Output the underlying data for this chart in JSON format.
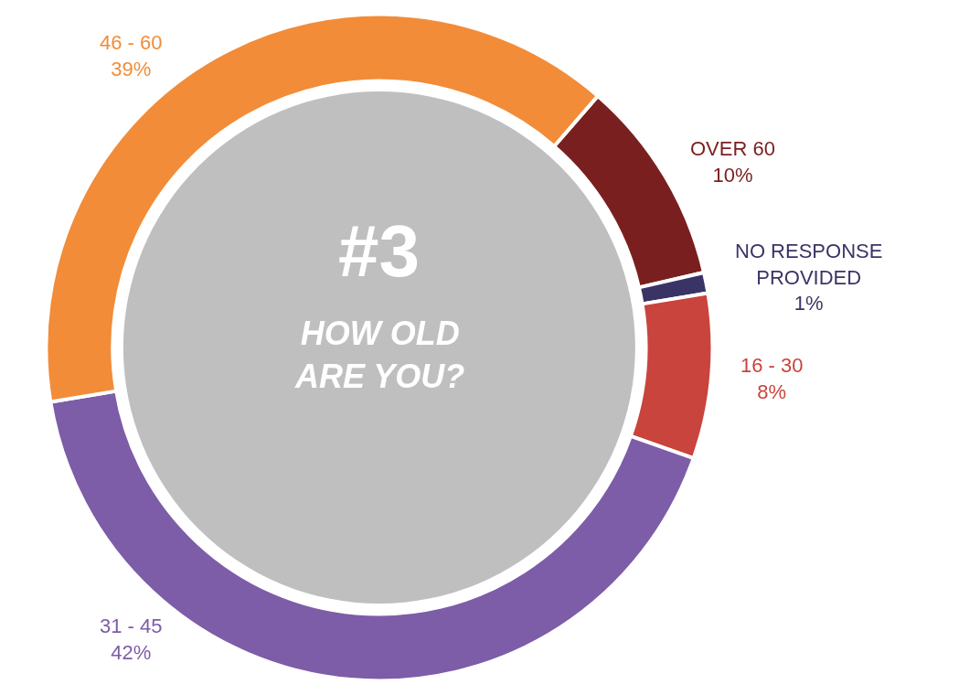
{
  "chart_data": {
    "type": "donut",
    "title": "#3",
    "subtitle": "HOW OLD ARE YOU?",
    "categories": [
      "OVER 60",
      "NO RESPONSE PROVIDED",
      "16 - 30",
      "31 - 45",
      "46 - 60"
    ],
    "values": [
      10,
      1,
      8,
      42,
      39
    ],
    "value_labels": [
      "10%",
      "1%",
      "8%",
      "42%",
      "39%"
    ],
    "colors": [
      "#7a1f1f",
      "#3a3466",
      "#c9443c",
      "#7d5ca8",
      "#f28c38"
    ],
    "data_labels": true,
    "legend": false
  }
}
